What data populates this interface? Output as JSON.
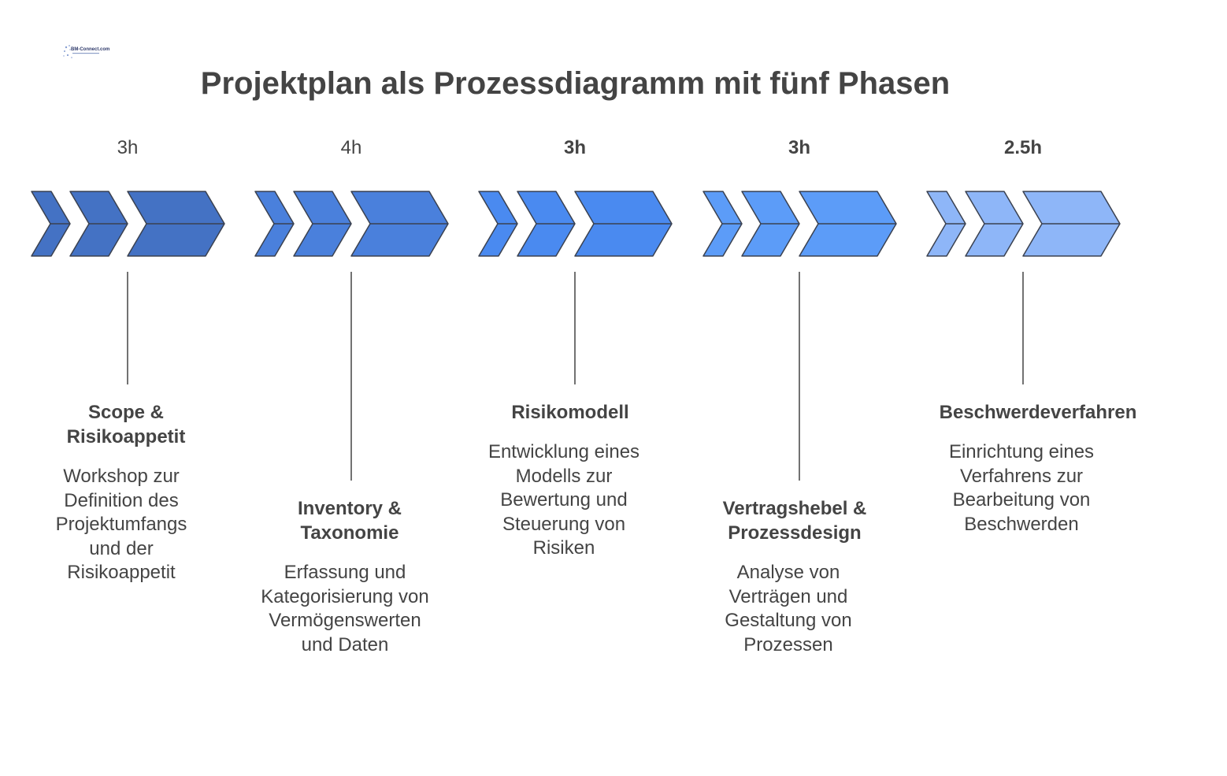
{
  "logo": {
    "text": "BM-Connect.com"
  },
  "title": "Projektplan als Prozessdiagramm mit fünf Phasen",
  "colors": {
    "stroke": "#3a4150",
    "connector": "#444444",
    "phase_fills": [
      "#4472c4",
      "#4a80dc",
      "#4a8af0",
      "#5c9cf8",
      "#8eb6f8"
    ]
  },
  "phases": [
    {
      "duration": "3h",
      "title": "Scope & Risikoappetit",
      "description": "Workshop zur Definition des Projektumfangs und der Risikoappetit"
    },
    {
      "duration": "4h",
      "title": "Inventory & Taxonomie",
      "description": "Erfassung und Kategorisierung von Vermögenswerten und Daten"
    },
    {
      "duration": "3h",
      "title": "Risikomodell",
      "description": "Entwicklung eines Modells zur Bewertung und Steuerung von Risiken"
    },
    {
      "duration": "3h",
      "title": "Vertragshebel & Prozessdesign",
      "description": "Analyse von Verträgen und Gestaltung von Prozessen"
    },
    {
      "duration": "2.5h",
      "title": "Beschwerdeverfahren",
      "description": "Einrichtung eines Verfahrens zur Bearbeitung von Beschwerden"
    }
  ]
}
